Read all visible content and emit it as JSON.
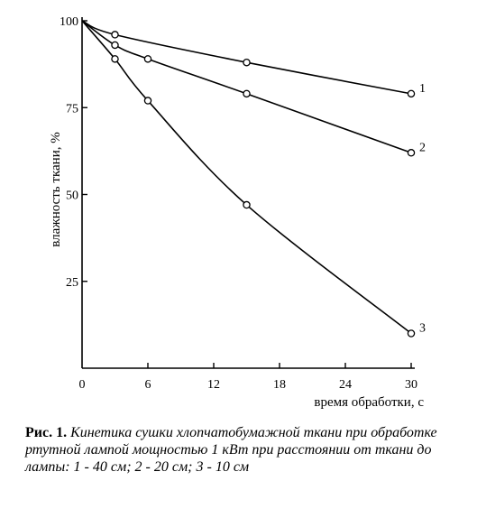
{
  "chart_data": {
    "type": "line",
    "title": "",
    "xlabel": "время обработки, с",
    "ylabel": "влажность ткани, %",
    "xlim": [
      0,
      30
    ],
    "ylim": [
      0,
      100
    ],
    "x_ticks": [
      0,
      6,
      12,
      18,
      24,
      30
    ],
    "y_ticks": [
      25,
      50,
      75,
      100
    ],
    "x_tick_labels": [
      "0",
      "6",
      "12",
      "18",
      "24",
      "30"
    ],
    "y_tick_labels": [
      "25",
      "50",
      "75",
      "100"
    ],
    "grid": false,
    "legend": "none",
    "series": [
      {
        "label": "1",
        "points": [
          [
            0,
            100
          ],
          [
            3,
            96
          ],
          [
            15,
            88
          ],
          [
            30,
            79
          ]
        ]
      },
      {
        "label": "2",
        "points": [
          [
            0,
            100
          ],
          [
            3,
            93
          ],
          [
            6,
            89
          ],
          [
            15,
            79
          ],
          [
            30,
            62
          ]
        ]
      },
      {
        "label": "3",
        "points": [
          [
            0,
            100
          ],
          [
            3,
            89
          ],
          [
            6,
            77
          ],
          [
            15,
            47
          ],
          [
            30,
            10
          ]
        ]
      }
    ]
  },
  "caption": {
    "head": "Рис. 1.",
    "body": "Кинетика сушки хлопчатобумажной ткани при обработке ртутной лампой мощностью 1 кВт при расстоянии от ткани до лампы: 1 - 40 см; 2 - 20 см; 3 - 10 см"
  }
}
